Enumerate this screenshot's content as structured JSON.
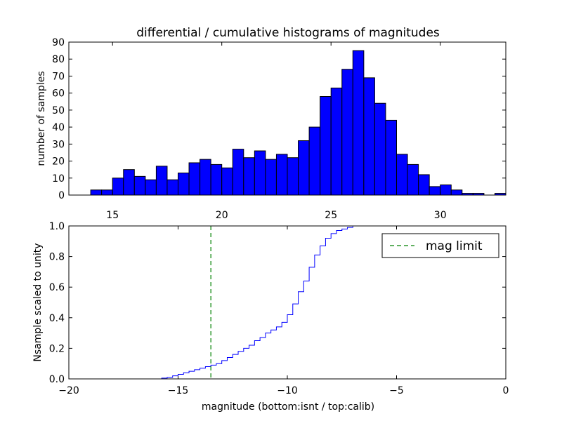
{
  "chart_data": [
    {
      "type": "bar",
      "title": "differential / cumulative histograms of magnitudes",
      "ylabel": "number of samples",
      "xlim": [
        13.0,
        33.0
      ],
      "ylim": [
        0,
        90
      ],
      "xticks": [
        15,
        20,
        25,
        30
      ],
      "yticks": [
        0,
        10,
        20,
        30,
        40,
        50,
        60,
        70,
        80,
        90
      ],
      "bar_color": "#0000ff",
      "bin_width": 0.5,
      "bins": [
        {
          "x": 14.0,
          "y": 3
        },
        {
          "x": 14.5,
          "y": 3
        },
        {
          "x": 15.0,
          "y": 10
        },
        {
          "x": 15.5,
          "y": 15
        },
        {
          "x": 16.0,
          "y": 11
        },
        {
          "x": 16.5,
          "y": 9
        },
        {
          "x": 17.0,
          "y": 17
        },
        {
          "x": 17.5,
          "y": 9
        },
        {
          "x": 18.0,
          "y": 13
        },
        {
          "x": 18.5,
          "y": 19
        },
        {
          "x": 19.0,
          "y": 21
        },
        {
          "x": 19.5,
          "y": 18
        },
        {
          "x": 20.0,
          "y": 16
        },
        {
          "x": 20.5,
          "y": 27
        },
        {
          "x": 21.0,
          "y": 22
        },
        {
          "x": 21.5,
          "y": 26
        },
        {
          "x": 22.0,
          "y": 21
        },
        {
          "x": 22.5,
          "y": 24
        },
        {
          "x": 23.0,
          "y": 22
        },
        {
          "x": 23.5,
          "y": 32
        },
        {
          "x": 24.0,
          "y": 40
        },
        {
          "x": 24.5,
          "y": 58
        },
        {
          "x": 25.0,
          "y": 63
        },
        {
          "x": 25.5,
          "y": 74
        },
        {
          "x": 26.0,
          "y": 85
        },
        {
          "x": 26.5,
          "y": 69
        },
        {
          "x": 27.0,
          "y": 54
        },
        {
          "x": 27.5,
          "y": 44
        },
        {
          "x": 28.0,
          "y": 24
        },
        {
          "x": 28.5,
          "y": 18
        },
        {
          "x": 29.0,
          "y": 12
        },
        {
          "x": 29.5,
          "y": 5
        },
        {
          "x": 30.0,
          "y": 6
        },
        {
          "x": 30.5,
          "y": 3
        },
        {
          "x": 31.0,
          "y": 1
        },
        {
          "x": 31.5,
          "y": 1
        },
        {
          "x": 32.0,
          "y": 0
        },
        {
          "x": 32.5,
          "y": 1
        }
      ]
    },
    {
      "type": "line",
      "xlabel": "magnitude (bottom:isnt / top:calib)",
      "ylabel": "Nsample scaled to unity",
      "xlim": [
        -20,
        0
      ],
      "ylim": [
        0.0,
        1.0
      ],
      "xticks": [
        -20,
        -15,
        -10,
        -5,
        0
      ],
      "xtick_labels": [
        "−20",
        "−15",
        "−10",
        "−5",
        "0"
      ],
      "yticks": [
        0.0,
        0.2,
        0.4,
        0.6,
        0.8,
        1.0
      ],
      "ytick_labels": [
        "0.0",
        "0.2",
        "0.4",
        "0.6",
        "0.8",
        "1.0"
      ],
      "series": [
        {
          "style": "step",
          "color": "#0000ff",
          "x": [
            -20.0,
            -16.0,
            -15.75,
            -15.5,
            -15.25,
            -15.0,
            -14.75,
            -14.5,
            -14.25,
            -14.0,
            -13.75,
            -13.5,
            -13.25,
            -13.0,
            -12.75,
            -12.5,
            -12.25,
            -12.0,
            -11.75,
            -11.5,
            -11.25,
            -11.0,
            -10.75,
            -10.5,
            -10.25,
            -10.0,
            -9.75,
            -9.5,
            -9.25,
            -9.0,
            -8.75,
            -8.5,
            -8.25,
            -8.0,
            -7.75,
            -7.5,
            -7.25,
            -7.0,
            -0.05,
            0.0
          ],
          "y": [
            0.0,
            0.0,
            0.005,
            0.01,
            0.02,
            0.03,
            0.04,
            0.05,
            0.06,
            0.07,
            0.08,
            0.09,
            0.1,
            0.12,
            0.14,
            0.16,
            0.18,
            0.2,
            0.22,
            0.25,
            0.27,
            0.3,
            0.32,
            0.34,
            0.37,
            0.42,
            0.49,
            0.57,
            0.64,
            0.73,
            0.81,
            0.87,
            0.92,
            0.95,
            0.97,
            0.98,
            0.99,
            1.0,
            1.0,
            0.0
          ]
        },
        {
          "name": "mag limit",
          "style": "dashed",
          "color": "#008000",
          "vline_x": -13.5
        }
      ],
      "legend": {
        "label": "mag limit",
        "placement": "top-right"
      }
    }
  ]
}
